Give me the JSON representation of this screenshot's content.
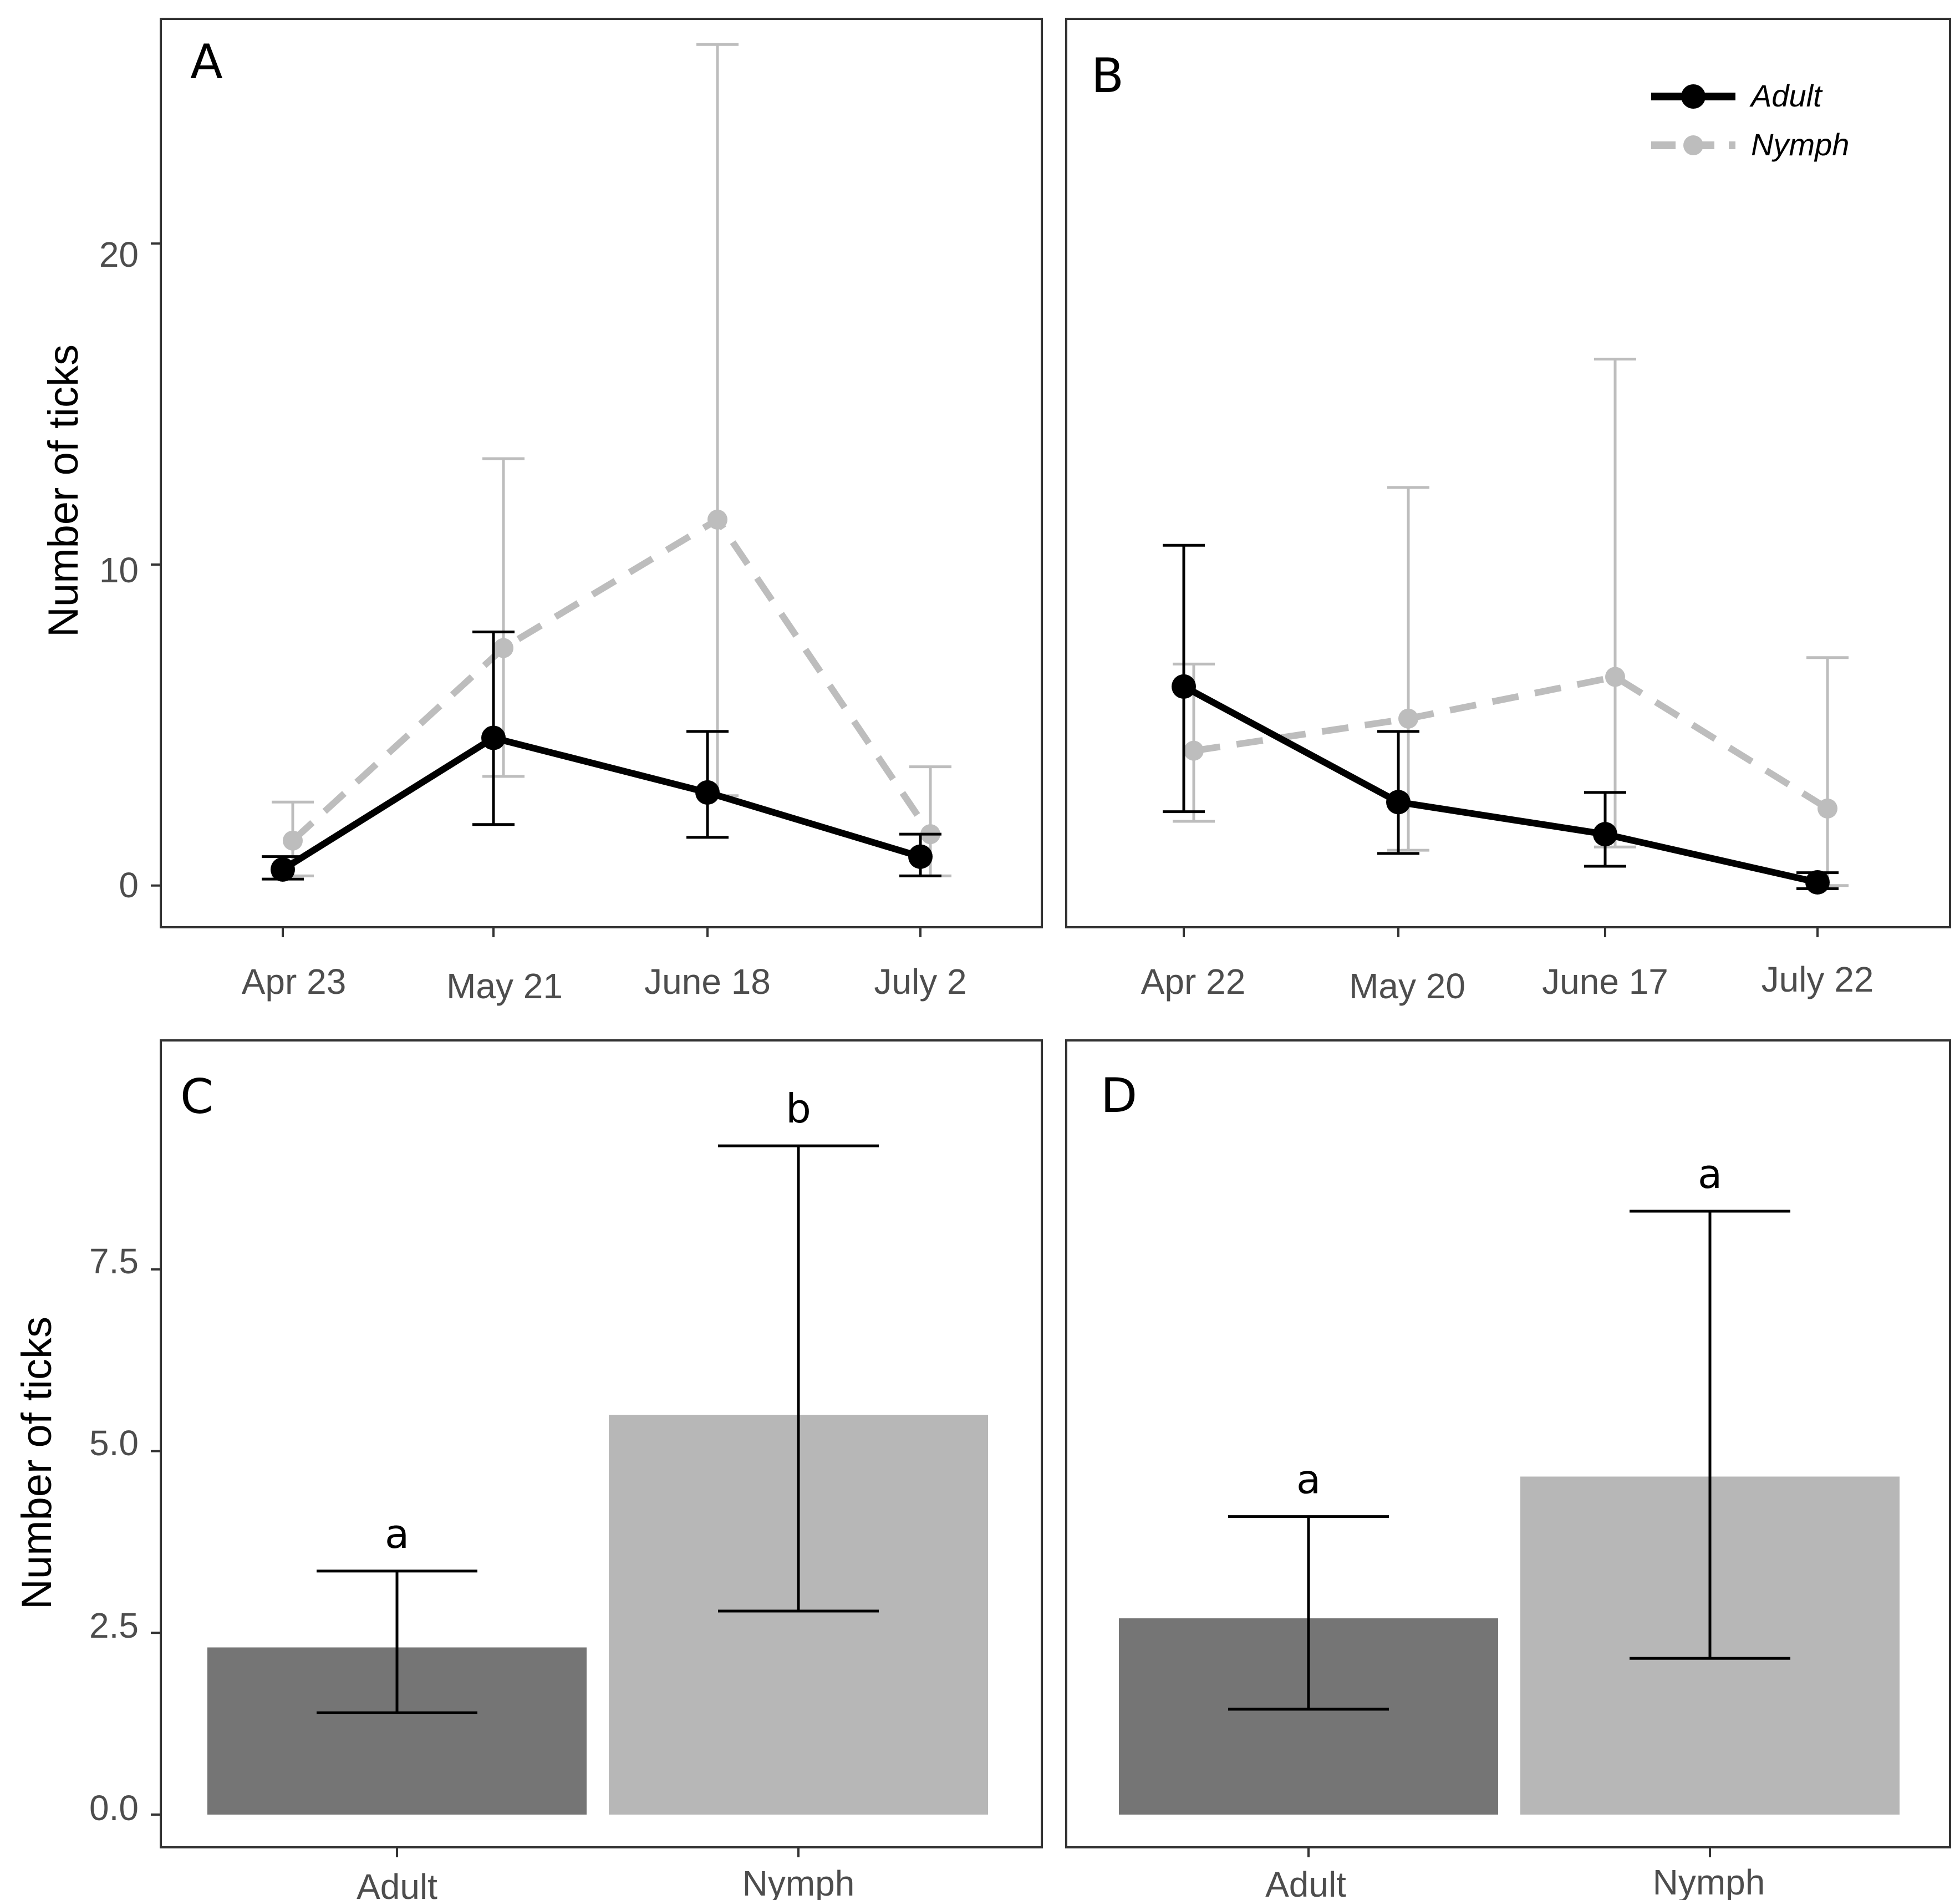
{
  "chart_data": [
    {
      "panel": "A",
      "type": "line",
      "categories": [
        "Apr 23",
        "May 21",
        "June 18",
        "July 2"
      ],
      "ylabel": "Number of ticks",
      "ylim": [
        -1.3,
        27.0
      ],
      "yticks": [
        "0",
        "10",
        "20"
      ],
      "yticks_values": [
        0,
        10,
        20
      ],
      "series": [
        {
          "name": "Adult",
          "color": "#000000",
          "dash": "solid",
          "values": [
            0.5,
            4.6,
            2.9,
            0.9
          ],
          "lower": [
            0.2,
            1.9,
            1.5,
            0.3
          ],
          "upper": [
            0.9,
            7.9,
            4.8,
            1.6
          ]
        },
        {
          "name": "Nymph",
          "color": "#bdbdbd",
          "dash": "dashed",
          "values": [
            1.4,
            7.4,
            11.4,
            1.6
          ],
          "lower": [
            0.3,
            3.4,
            2.8,
            0.3
          ],
          "upper": [
            2.6,
            13.3,
            26.2,
            3.7
          ]
        }
      ]
    },
    {
      "panel": "B",
      "type": "line",
      "categories": [
        "Apr 22",
        "May 20",
        "June 17",
        "July 22"
      ],
      "ylabel": "",
      "ylim": [
        -1.3,
        27.0
      ],
      "yticks": [],
      "yticks_values": [],
      "legend": {
        "position": "top-right",
        "entries": [
          "Adult",
          "Nymph"
        ]
      },
      "series": [
        {
          "name": "Adult",
          "color": "#000000",
          "dash": "solid",
          "values": [
            6.2,
            2.6,
            1.6,
            0.1
          ],
          "lower": [
            2.3,
            1.0,
            0.6,
            -0.1
          ],
          "upper": [
            10.6,
            4.8,
            2.9,
            0.4
          ]
        },
        {
          "name": "Nymph",
          "color": "#bdbdbd",
          "dash": "dashed",
          "values": [
            4.2,
            5.2,
            6.5,
            2.4
          ],
          "lower": [
            2.0,
            1.1,
            1.2,
            0.0
          ],
          "upper": [
            6.9,
            12.4,
            16.4,
            7.1
          ]
        }
      ]
    },
    {
      "panel": "C",
      "type": "bar",
      "categories": [
        "Adult",
        "Nymph"
      ],
      "ylabel": "Number of ticks",
      "ylim": [
        -0.45,
        10.65
      ],
      "yticks": [
        "0.0",
        "2.5",
        "5.0",
        "7.5"
      ],
      "yticks_values": [
        0,
        2.5,
        5.0,
        7.5
      ],
      "values": [
        2.3,
        5.5
      ],
      "lower": [
        1.4,
        2.8
      ],
      "upper": [
        3.35,
        9.2
      ],
      "colors": [
        "#757575",
        "#b7b7b7"
      ],
      "annotations": [
        "a",
        "b"
      ]
    },
    {
      "panel": "D",
      "type": "bar",
      "categories": [
        "Adult",
        "Nymph"
      ],
      "ylabel": "",
      "ylim": [
        -0.45,
        10.65
      ],
      "yticks": [],
      "yticks_values": [],
      "values": [
        2.7,
        4.65
      ],
      "lower": [
        1.45,
        2.15
      ],
      "upper": [
        4.1,
        8.3
      ],
      "colors": [
        "#757575",
        "#b7b7b7"
      ],
      "annotations": [
        "a",
        "a"
      ]
    }
  ]
}
